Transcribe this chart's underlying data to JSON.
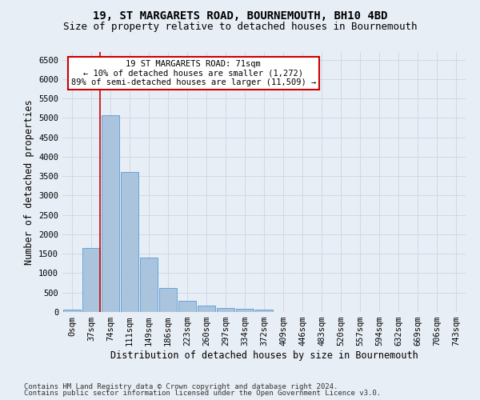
{
  "title": "19, ST MARGARETS ROAD, BOURNEMOUTH, BH10 4BD",
  "subtitle": "Size of property relative to detached houses in Bournemouth",
  "xlabel": "Distribution of detached houses by size in Bournemouth",
  "ylabel": "Number of detached properties",
  "footer_line1": "Contains HM Land Registry data © Crown copyright and database right 2024.",
  "footer_line2": "Contains public sector information licensed under the Open Government Licence v3.0.",
  "bar_labels": [
    "0sqm",
    "37sqm",
    "74sqm",
    "111sqm",
    "149sqm",
    "186sqm",
    "223sqm",
    "260sqm",
    "297sqm",
    "334sqm",
    "372sqm",
    "409sqm",
    "446sqm",
    "483sqm",
    "520sqm",
    "557sqm",
    "594sqm",
    "632sqm",
    "669sqm",
    "706sqm",
    "743sqm"
  ],
  "bar_values": [
    70,
    1650,
    5080,
    3600,
    1410,
    615,
    290,
    155,
    105,
    75,
    65,
    0,
    0,
    0,
    0,
    0,
    0,
    0,
    0,
    0,
    0
  ],
  "bar_color": "#aac4dd",
  "bar_edge_color": "#5b9bd5",
  "highlight_bar_index": 1,
  "highlight_line_color": "#cc0000",
  "annotation_text": "19 ST MARGARETS ROAD: 71sqm\n← 10% of detached houses are smaller (1,272)\n89% of semi-detached houses are larger (11,509) →",
  "annotation_box_color": "#ffffff",
  "annotation_box_edge": "#cc0000",
  "ylim": [
    0,
    6700
  ],
  "yticks": [
    0,
    500,
    1000,
    1500,
    2000,
    2500,
    3000,
    3500,
    4000,
    4500,
    5000,
    5500,
    6000,
    6500
  ],
  "grid_color": "#d0d8e8",
  "background_color": "#e8eef5",
  "title_fontsize": 10,
  "subtitle_fontsize": 9,
  "axis_label_fontsize": 8.5,
  "tick_fontsize": 7.5,
  "footer_fontsize": 6.5
}
